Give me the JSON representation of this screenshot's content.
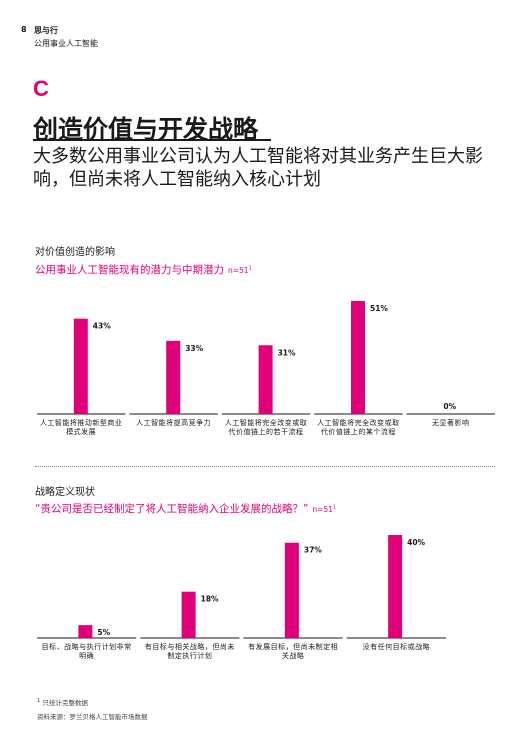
{
  "header": {
    "page_number": "8",
    "title": "思与行",
    "subtitle": "公用事业人工智能"
  },
  "section": {
    "letter": "C",
    "title": "创造价值与开发战略",
    "subtitle": "大多数公用事业公司认为人工智能将对其业务产生巨大影响，但尚未将人工智能纳入核心计划"
  },
  "colors": {
    "accent": "#e0007a",
    "text": "#1a1a1a"
  },
  "chart_data": [
    {
      "type": "bar",
      "heading": "对价值创造的影响",
      "title": "公用事业人工智能现有的潜力与中期潜力",
      "n_label": "n=51",
      "n_footnote": "1",
      "categories": [
        "人工智能将推动新型商业模式发展",
        "人工智能将提高竞争力",
        "人工智能将完全改变或取代价值链上的若干流程",
        "人工智能将完全改变或取代价值链上的某个流程",
        "无显著影响"
      ],
      "values": [
        43,
        33,
        31,
        51,
        0
      ],
      "value_labels": [
        "43%",
        "33%",
        "31%",
        "51%",
        "0%"
      ],
      "ylim": [
        0,
        60
      ],
      "grid": false
    },
    {
      "type": "bar",
      "heading": "战略定义现状",
      "title": "“贵公司是否已经制定了将人工智能纳入企业发展的战略？”",
      "n_label": "n=51",
      "n_footnote": "1",
      "categories": [
        "目标、战略与执行计划非常明确",
        "有目标与相关战略，但尚未制定执行计划",
        "有发展目标，但尚未制定相关战略",
        "没有任何目标或战略"
      ],
      "values": [
        5,
        18,
        37,
        40
      ],
      "value_labels": [
        "5%",
        "18%",
        "37%",
        "40%"
      ],
      "ylim": [
        0,
        47
      ],
      "grid": false
    }
  ],
  "footnotes": {
    "note": "只统计完整数据",
    "note_marker": "1",
    "source": "资料来源：罗兰贝格人工智能市场数据"
  }
}
